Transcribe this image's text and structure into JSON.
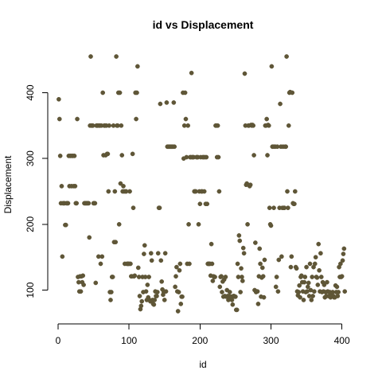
{
  "chart_data": {
    "type": "scatter",
    "title": "id vs Displacement",
    "xlabel": "id",
    "ylabel": "Displacement",
    "xlim": [
      0,
      406
    ],
    "ylim": [
      68,
      455
    ],
    "x_ticks": [
      0,
      100,
      200,
      300,
      400
    ],
    "y_ticks": [
      100,
      200,
      300,
      400
    ],
    "grid": false,
    "legend": "none",
    "marker_color": "#5f5637",
    "points": [
      [
        1,
        390
      ],
      [
        2,
        360
      ],
      [
        3,
        304
      ],
      [
        4,
        232
      ],
      [
        5,
        258
      ],
      [
        6,
        151
      ],
      [
        7,
        232
      ],
      [
        8,
        232
      ],
      [
        9,
        232
      ],
      [
        10,
        199
      ],
      [
        11,
        199
      ],
      [
        12,
        232
      ],
      [
        13,
        232
      ],
      [
        14,
        232
      ],
      [
        15,
        304
      ],
      [
        16,
        258
      ],
      [
        17,
        304
      ],
      [
        18,
        304
      ],
      [
        19,
        258
      ],
      [
        20,
        304
      ],
      [
        21,
        304
      ],
      [
        22,
        258
      ],
      [
        23,
        304
      ],
      [
        24,
        258
      ],
      [
        25,
        232
      ],
      [
        26,
        232
      ],
      [
        27,
        360
      ],
      [
        28,
        120
      ],
      [
        29,
        112
      ],
      [
        30,
        98
      ],
      [
        31,
        121
      ],
      [
        32,
        98
      ],
      [
        33,
        121
      ],
      [
        34,
        112
      ],
      [
        35,
        122
      ],
      [
        36,
        108
      ],
      [
        37,
        232
      ],
      [
        38,
        232
      ],
      [
        39,
        232
      ],
      [
        40,
        232
      ],
      [
        41,
        232
      ],
      [
        42,
        232
      ],
      [
        43,
        232
      ],
      [
        44,
        180
      ],
      [
        45,
        350
      ],
      [
        46,
        455
      ],
      [
        47,
        350
      ],
      [
        48,
        350
      ],
      [
        49,
        350
      ],
      [
        50,
        232
      ],
      [
        51,
        232
      ],
      [
        52,
        232
      ],
      [
        53,
        111
      ],
      [
        54,
        350
      ],
      [
        55,
        350
      ],
      [
        56,
        350
      ],
      [
        57,
        151
      ],
      [
        58,
        350
      ],
      [
        59,
        350
      ],
      [
        60,
        140
      ],
      [
        61,
        350
      ],
      [
        62,
        151
      ],
      [
        63,
        400
      ],
      [
        64,
        305
      ],
      [
        65,
        350
      ],
      [
        66,
        350
      ],
      [
        67,
        305
      ],
      [
        68,
        350
      ],
      [
        69,
        307
      ],
      [
        70,
        307
      ],
      [
        71,
        250
      ],
      [
        72,
        350
      ],
      [
        73,
        97
      ],
      [
        74,
        85
      ],
      [
        75,
        97
      ],
      [
        76,
        120
      ],
      [
        77,
        120
      ],
      [
        78,
        350
      ],
      [
        79,
        173
      ],
      [
        80,
        250
      ],
      [
        81,
        173
      ],
      [
        82,
        455
      ],
      [
        83,
        350
      ],
      [
        84,
        350
      ],
      [
        85,
        400
      ],
      [
        86,
        200
      ],
      [
        87,
        400
      ],
      [
        88,
        262
      ],
      [
        89,
        350
      ],
      [
        90,
        305
      ],
      [
        91,
        250
      ],
      [
        92,
        258
      ],
      [
        93,
        250
      ],
      [
        94,
        140
      ],
      [
        95,
        250
      ],
      [
        96,
        250
      ],
      [
        97,
        140
      ],
      [
        98,
        140
      ],
      [
        99,
        140
      ],
      [
        100,
        140
      ],
      [
        101,
        250
      ],
      [
        102,
        140
      ],
      [
        103,
        121
      ],
      [
        104,
        121
      ],
      [
        105,
        307
      ],
      [
        106,
        225
      ],
      [
        107,
        121
      ],
      [
        108,
        122
      ],
      [
        109,
        400
      ],
      [
        110,
        360
      ],
      [
        111,
        400
      ],
      [
        112,
        440
      ],
      [
        113,
        134
      ],
      [
        114,
        120
      ],
      [
        115,
        91
      ],
      [
        116,
        71
      ],
      [
        117,
        76
      ],
      [
        118,
        83
      ],
      [
        119,
        120
      ],
      [
        120,
        97
      ],
      [
        121,
        155
      ],
      [
        122,
        168
      ],
      [
        123,
        120
      ],
      [
        124,
        98
      ],
      [
        125,
        85
      ],
      [
        126,
        108
      ],
      [
        127,
        89
      ],
      [
        128,
        120
      ],
      [
        129,
        85
      ],
      [
        130,
        83
      ],
      [
        131,
        156
      ],
      [
        132,
        145
      ],
      [
        133,
        85
      ],
      [
        134,
        79
      ],
      [
        135,
        78
      ],
      [
        136,
        85
      ],
      [
        137,
        98
      ],
      [
        138,
        91
      ],
      [
        139,
        91
      ],
      [
        140,
        97
      ],
      [
        141,
        156
      ],
      [
        142,
        225
      ],
      [
        143,
        225
      ],
      [
        144,
        383
      ],
      [
        145,
        145
      ],
      [
        146,
        113
      ],
      [
        147,
        101
      ],
      [
        148,
        93
      ],
      [
        149,
        97
      ],
      [
        150,
        85
      ],
      [
        151,
        156
      ],
      [
        152,
        98
      ],
      [
        153,
        385
      ],
      [
        154,
        318
      ],
      [
        155,
        318
      ],
      [
        156,
        318
      ],
      [
        157,
        318
      ],
      [
        158,
        318
      ],
      [
        159,
        318
      ],
      [
        160,
        318
      ],
      [
        161,
        318
      ],
      [
        162,
        318
      ],
      [
        163,
        385
      ],
      [
        164,
        318
      ],
      [
        165,
        105
      ],
      [
        166,
        121
      ],
      [
        167,
        135
      ],
      [
        168,
        98
      ],
      [
        169,
        68
      ],
      [
        170,
        97
      ],
      [
        171,
        130
      ],
      [
        172,
        140
      ],
      [
        173,
        79
      ],
      [
        174,
        90
      ],
      [
        175,
        90
      ],
      [
        176,
        400
      ],
      [
        177,
        300
      ],
      [
        178,
        350
      ],
      [
        179,
        400
      ],
      [
        180,
        360
      ],
      [
        181,
        302
      ],
      [
        182,
        140
      ],
      [
        183,
        350
      ],
      [
        184,
        200
      ],
      [
        185,
        140
      ],
      [
        186,
        302
      ],
      [
        187,
        302
      ],
      [
        188,
        430
      ],
      [
        189,
        302
      ],
      [
        190,
        302
      ],
      [
        191,
        302
      ],
      [
        192,
        250
      ],
      [
        193,
        250
      ],
      [
        194,
        250
      ],
      [
        195,
        302
      ],
      [
        196,
        302
      ],
      [
        197,
        302
      ],
      [
        198,
        200
      ],
      [
        199,
        250
      ],
      [
        200,
        231
      ],
      [
        201,
        302
      ],
      [
        202,
        250
      ],
      [
        203,
        250
      ],
      [
        204,
        302
      ],
      [
        205,
        302
      ],
      [
        206,
        250
      ],
      [
        207,
        302
      ],
      [
        208,
        231
      ],
      [
        209,
        302
      ],
      [
        210,
        231
      ],
      [
        211,
        140
      ],
      [
        212,
        140
      ],
      [
        213,
        140
      ],
      [
        214,
        140
      ],
      [
        215,
        122
      ],
      [
        216,
        170
      ],
      [
        217,
        140
      ],
      [
        218,
        114
      ],
      [
        219,
        121
      ],
      [
        220,
        120
      ],
      [
        221,
        120
      ],
      [
        222,
        350
      ],
      [
        223,
        350
      ],
      [
        224,
        302
      ],
      [
        225,
        350
      ],
      [
        226,
        302
      ],
      [
        227,
        250
      ],
      [
        228,
        105
      ],
      [
        229,
        120
      ],
      [
        230,
        121
      ],
      [
        231,
        97
      ],
      [
        232,
        113
      ],
      [
        233,
        90
      ],
      [
        234,
        116
      ],
      [
        235,
        91
      ],
      [
        236,
        120
      ],
      [
        237,
        90
      ],
      [
        238,
        100
      ],
      [
        239,
        91
      ],
      [
        240,
        85
      ],
      [
        241,
        91
      ],
      [
        242,
        97
      ],
      [
        243,
        89
      ],
      [
        244,
        90
      ],
      [
        245,
        85
      ],
      [
        246,
        78
      ],
      [
        247,
        91
      ],
      [
        248,
        91
      ],
      [
        249,
        90
      ],
      [
        250,
        90
      ],
      [
        251,
        70
      ],
      [
        252,
        70
      ],
      [
        253,
        140
      ],
      [
        254,
        120
      ],
      [
        255,
        183
      ],
      [
        256,
        175
      ],
      [
        257,
        97
      ],
      [
        258,
        133
      ],
      [
        259,
        120
      ],
      [
        260,
        114
      ],
      [
        261,
        164
      ],
      [
        262,
        156
      ],
      [
        263,
        429
      ],
      [
        264,
        350
      ],
      [
        265,
        260
      ],
      [
        266,
        262
      ],
      [
        267,
        200
      ],
      [
        268,
        350
      ],
      [
        269,
        350
      ],
      [
        270,
        258
      ],
      [
        271,
        260
      ],
      [
        272,
        351
      ],
      [
        273,
        350
      ],
      [
        274,
        351
      ],
      [
        275,
        350
      ],
      [
        276,
        305
      ],
      [
        277,
        100
      ],
      [
        278,
        172
      ],
      [
        279,
        97
      ],
      [
        280,
        98
      ],
      [
        281,
        98
      ],
      [
        282,
        79
      ],
      [
        283,
        121
      ],
      [
        284,
        163
      ],
      [
        285,
        140
      ],
      [
        286,
        90
      ],
      [
        287,
        119
      ],
      [
        288,
        134
      ],
      [
        289,
        121
      ],
      [
        290,
        89
      ],
      [
        291,
        146
      ],
      [
        292,
        350
      ],
      [
        293,
        350
      ],
      [
        294,
        360
      ],
      [
        295,
        305
      ],
      [
        296,
        351
      ],
      [
        297,
        350
      ],
      [
        298,
        225
      ],
      [
        299,
        200
      ],
      [
        300,
        198
      ],
      [
        301,
        440
      ],
      [
        302,
        318
      ],
      [
        303,
        318
      ],
      [
        304,
        225
      ],
      [
        305,
        318
      ],
      [
        306,
        318
      ],
      [
        307,
        105
      ],
      [
        308,
        120
      ],
      [
        309,
        318
      ],
      [
        310,
        98
      ],
      [
        311,
        146
      ],
      [
        312,
        225
      ],
      [
        313,
        383
      ],
      [
        314,
        318
      ],
      [
        315,
        151
      ],
      [
        316,
        225
      ],
      [
        317,
        318
      ],
      [
        318,
        225
      ],
      [
        319,
        225
      ],
      [
        320,
        318
      ],
      [
        321,
        318
      ],
      [
        322,
        455
      ],
      [
        323,
        250
      ],
      [
        324,
        225
      ],
      [
        325,
        350
      ],
      [
        326,
        400
      ],
      [
        327,
        401
      ],
      [
        328,
        135
      ],
      [
        329,
        151
      ],
      [
        330,
        400
      ],
      [
        331,
        232
      ],
      [
        332,
        231
      ],
      [
        333,
        231
      ],
      [
        334,
        250
      ],
      [
        335,
        135
      ],
      [
        336,
        133
      ],
      [
        337,
        98
      ],
      [
        338,
        92
      ],
      [
        339,
        97
      ],
      [
        340,
        107
      ],
      [
        341,
        89
      ],
      [
        342,
        120
      ],
      [
        343,
        122
      ],
      [
        344,
        112
      ],
      [
        345,
        98
      ],
      [
        346,
        85
      ],
      [
        347,
        112
      ],
      [
        348,
        120
      ],
      [
        349,
        97
      ],
      [
        350,
        135
      ],
      [
        351,
        98
      ],
      [
        352,
        105
      ],
      [
        353,
        111
      ],
      [
        354,
        91
      ],
      [
        355,
        140
      ],
      [
        356,
        100
      ],
      [
        357,
        85
      ],
      [
        358,
        120
      ],
      [
        359,
        91
      ],
      [
        360,
        135
      ],
      [
        361,
        98
      ],
      [
        362,
        140
      ],
      [
        363,
        150
      ],
      [
        364,
        120
      ],
      [
        365,
        119
      ],
      [
        366,
        108
      ],
      [
        367,
        170
      ],
      [
        368,
        130
      ],
      [
        369,
        98
      ],
      [
        370,
        156
      ],
      [
        371,
        120
      ],
      [
        372,
        97
      ],
      [
        373,
        112
      ],
      [
        374,
        98
      ],
      [
        375,
        108
      ],
      [
        376,
        89
      ],
      [
        377,
        97
      ],
      [
        378,
        91
      ],
      [
        379,
        112
      ],
      [
        380,
        98
      ],
      [
        381,
        91
      ],
      [
        382,
        91
      ],
      [
        383,
        97
      ],
      [
        384,
        89
      ],
      [
        385,
        91
      ],
      [
        386,
        92
      ],
      [
        387,
        97
      ],
      [
        388,
        91
      ],
      [
        389,
        89
      ],
      [
        390,
        89
      ],
      [
        391,
        107
      ],
      [
        392,
        97
      ],
      [
        393,
        105
      ],
      [
        394,
        91
      ],
      [
        395,
        97
      ],
      [
        396,
        135
      ],
      [
        397,
        120
      ],
      [
        398,
        140
      ],
      [
        399,
        120
      ],
      [
        400,
        121
      ],
      [
        401,
        145
      ],
      [
        402,
        155
      ],
      [
        403,
        163
      ],
      [
        404,
        98
      ]
    ]
  }
}
